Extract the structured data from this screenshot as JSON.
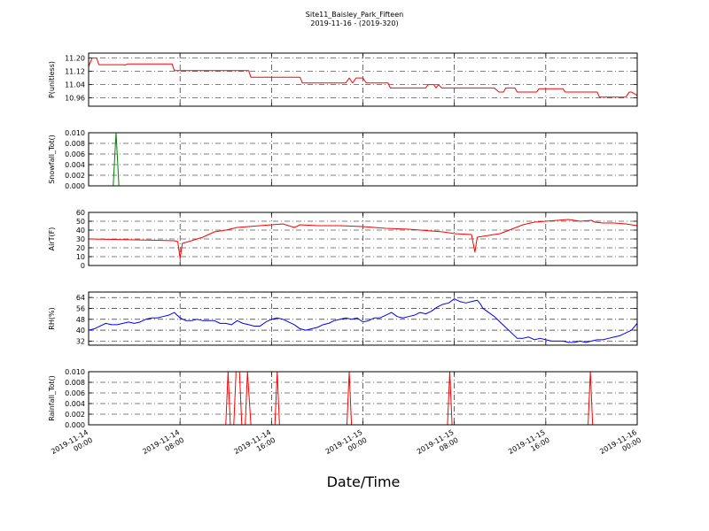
{
  "chart_data": [
    {
      "type": "line",
      "title": "Site11_Baisley_Park_Fifteen",
      "subtitle": "2019-11-16 - (2019-320)",
      "xlabel": "Date/Time",
      "x_ticks": [
        {
          "x": 0,
          "line1": "2019-11-14",
          "line2": "00:00"
        },
        {
          "x": 8,
          "line1": "2019-11-14",
          "line2": "08:00"
        },
        {
          "x": 16,
          "line1": "2019-11-14",
          "line2": "16:00"
        },
        {
          "x": 24,
          "line1": "2019-11-15",
          "line2": "00:00"
        },
        {
          "x": 32,
          "line1": "2019-11-15",
          "line2": "08:00"
        },
        {
          "x": 40,
          "line1": "2019-11-15",
          "line2": "16:00"
        },
        {
          "x": 48,
          "line1": "2019-11-16",
          "line2": "00:00"
        }
      ],
      "xlim": [
        0,
        48
      ],
      "grid": true,
      "panels": [
        {
          "ylabel": "P(unitless)",
          "color": "#ff0000",
          "ylim": [
            10.91,
            11.23
          ],
          "yticks": [
            10.96,
            11.04,
            11.12,
            11.2
          ],
          "ytick_labels": [
            "10.96",
            "11.04",
            "11.12",
            "11.20"
          ],
          "points": [
            [
              0,
              11.15
            ],
            [
              0.3,
              11.2
            ],
            [
              0.7,
              11.2
            ],
            [
              0.9,
              11.16
            ],
            [
              3,
              11.16
            ],
            [
              3.2,
              11.158
            ],
            [
              3.4,
              11.165
            ],
            [
              7.3,
              11.165
            ],
            [
              7.5,
              11.125
            ],
            [
              14,
              11.125
            ],
            [
              14.2,
              11.085
            ],
            [
              18.5,
              11.085
            ],
            [
              18.7,
              11.05
            ],
            [
              22.5,
              11.05
            ],
            [
              22.8,
              11.08
            ],
            [
              23.1,
              11.05
            ],
            [
              23.4,
              11.08
            ],
            [
              24,
              11.08
            ],
            [
              24.3,
              11.05
            ],
            [
              26.2,
              11.05
            ],
            [
              26.4,
              11.02
            ],
            [
              29.5,
              11.02
            ],
            [
              29.7,
              11.04
            ],
            [
              30.2,
              11.04
            ],
            [
              30.4,
              11.02
            ],
            [
              30.6,
              11.04
            ],
            [
              30.9,
              11.02
            ],
            [
              35.5,
              11.02
            ],
            [
              35.9,
              10.995
            ],
            [
              36.3,
              10.995
            ],
            [
              36.5,
              11.02
            ],
            [
              37.3,
              11.02
            ],
            [
              37.5,
              10.995
            ],
            [
              39.2,
              10.995
            ],
            [
              39.4,
              11.015
            ],
            [
              41.5,
              11.015
            ],
            [
              41.7,
              10.995
            ],
            [
              44.5,
              10.995
            ],
            [
              44.7,
              10.965
            ],
            [
              47,
              10.965
            ],
            [
              47.3,
              10.995
            ],
            [
              47.5,
              10.995
            ],
            [
              48,
              10.975
            ]
          ]
        },
        {
          "ylabel": "Snowfall_Tot()",
          "color": "#008000",
          "ylim": [
            0,
            0.01
          ],
          "yticks": [
            0,
            0.002,
            0.004,
            0.006,
            0.008,
            0.01
          ],
          "ytick_labels": [
            "0.000",
            "0.002",
            "0.004",
            "0.006",
            "0.008",
            "0.010"
          ],
          "points": [
            [
              0,
              0
            ],
            [
              2.15,
              0
            ],
            [
              2.4,
              0.01
            ],
            [
              2.65,
              0
            ],
            [
              48,
              0
            ]
          ]
        },
        {
          "ylabel": "AirT(F)",
          "color": "#ff0000",
          "ylim": [
            0,
            60
          ],
          "yticks": [
            0,
            10,
            20,
            30,
            40,
            50,
            60
          ],
          "ytick_labels": [
            "0",
            "10",
            "20",
            "30",
            "40",
            "50",
            "60"
          ],
          "points": [
            [
              0,
              30
            ],
            [
              2,
              29.5
            ],
            [
              4,
              29
            ],
            [
              6,
              28.5
            ],
            [
              7.5,
              28
            ],
            [
              7.8,
              27
            ],
            [
              8,
              8
            ],
            [
              8.2,
              25
            ],
            [
              9,
              28
            ],
            [
              10,
              32
            ],
            [
              11,
              38
            ],
            [
              12,
              40
            ],
            [
              13,
              43
            ],
            [
              14,
              44
            ],
            [
              16,
              46
            ],
            [
              17,
              47
            ],
            [
              18,
              43
            ],
            [
              18.5,
              46
            ],
            [
              20,
              45
            ],
            [
              22,
              45
            ],
            [
              24,
              44
            ],
            [
              26,
              42
            ],
            [
              28,
              41
            ],
            [
              30,
              39
            ],
            [
              31,
              38
            ],
            [
              32,
              36
            ],
            [
              33.5,
              35
            ],
            [
              33.8,
              15
            ],
            [
              34,
              32
            ],
            [
              35,
              34
            ],
            [
              36,
              36
            ],
            [
              37,
              41
            ],
            [
              38,
              46
            ],
            [
              39,
              49
            ],
            [
              40,
              50
            ],
            [
              41,
              51
            ],
            [
              42,
              52
            ],
            [
              43,
              50
            ],
            [
              44,
              51
            ],
            [
              44.3,
              49
            ],
            [
              45,
              48
            ],
            [
              46,
              48
            ],
            [
              47,
              47
            ],
            [
              48,
              45
            ]
          ]
        },
        {
          "ylabel": "RH(%)",
          "color": "#0000ff",
          "ylim": [
            29,
            68
          ],
          "yticks": [
            32,
            40,
            48,
            56,
            64
          ],
          "ytick_labels": [
            "32",
            "40",
            "48",
            "56",
            "64"
          ],
          "points": [
            [
              0,
              40
            ],
            [
              0.5,
              41
            ],
            [
              1,
              43
            ],
            [
              1.5,
              45
            ],
            [
              2,
              44
            ],
            [
              2.5,
              44
            ],
            [
              3,
              45
            ],
            [
              3.5,
              46
            ],
            [
              4,
              45
            ],
            [
              4.5,
              46
            ],
            [
              5,
              48
            ],
            [
              5.5,
              49
            ],
            [
              6,
              49
            ],
            [
              6.5,
              50
            ],
            [
              7,
              51
            ],
            [
              7.5,
              53
            ],
            [
              8,
              49
            ],
            [
              8.5,
              47
            ],
            [
              9,
              47
            ],
            [
              9.5,
              48
            ],
            [
              10,
              47
            ],
            [
              10.5,
              47
            ],
            [
              11,
              47
            ],
            [
              11.5,
              45
            ],
            [
              12,
              45
            ],
            [
              12.5,
              44
            ],
            [
              13,
              47
            ],
            [
              13.5,
              45
            ],
            [
              14,
              44
            ],
            [
              14.5,
              43
            ],
            [
              15,
              43
            ],
            [
              15.5,
              46
            ],
            [
              16,
              48
            ],
            [
              16.5,
              49
            ],
            [
              17,
              48
            ],
            [
              17.5,
              46
            ],
            [
              18,
              44
            ],
            [
              18.5,
              41
            ],
            [
              19,
              40
            ],
            [
              19.5,
              41
            ],
            [
              20,
              42
            ],
            [
              20.5,
              44
            ],
            [
              21,
              45
            ],
            [
              21.5,
              47
            ],
            [
              22,
              48
            ],
            [
              22.5,
              49
            ],
            [
              23,
              48
            ],
            [
              23.5,
              49
            ],
            [
              24,
              46
            ],
            [
              24.5,
              47
            ],
            [
              25,
              49
            ],
            [
              25.5,
              49
            ],
            [
              26,
              51
            ],
            [
              26.5,
              53
            ],
            [
              27,
              50
            ],
            [
              27.5,
              49
            ],
            [
              28,
              50
            ],
            [
              28.5,
              51
            ],
            [
              29,
              53
            ],
            [
              29.5,
              52
            ],
            [
              30,
              54
            ],
            [
              30.5,
              57
            ],
            [
              31,
              59
            ],
            [
              31.5,
              60
            ],
            [
              32,
              63
            ],
            [
              32.5,
              61
            ],
            [
              33,
              60
            ],
            [
              33.5,
              61
            ],
            [
              34,
              62
            ],
            [
              34.3,
              59
            ],
            [
              34.5,
              56
            ],
            [
              35,
              53
            ],
            [
              35.5,
              50
            ],
            [
              36,
              46
            ],
            [
              36.5,
              42
            ],
            [
              37,
              38
            ],
            [
              37.5,
              34
            ],
            [
              38,
              34
            ],
            [
              38.5,
              35
            ],
            [
              39,
              33
            ],
            [
              39.5,
              34
            ],
            [
              40,
              33
            ],
            [
              40.5,
              32
            ],
            [
              41,
              32
            ],
            [
              41.5,
              32
            ],
            [
              42,
              31
            ],
            [
              42.5,
              31
            ],
            [
              43,
              32
            ],
            [
              43.5,
              31
            ],
            [
              44,
              32
            ],
            [
              44.5,
              33
            ],
            [
              45,
              33
            ],
            [
              45.5,
              34
            ],
            [
              46,
              35
            ],
            [
              46.5,
              36
            ],
            [
              47,
              38
            ],
            [
              47.5,
              40
            ],
            [
              48,
              45
            ]
          ]
        },
        {
          "ylabel": "Rainfall_Tot()",
          "color": "#ff0000",
          "ylim": [
            0,
            0.01
          ],
          "yticks": [
            0,
            0.002,
            0.004,
            0.006,
            0.008,
            0.01
          ],
          "ytick_labels": [
            "0.000",
            "0.002",
            "0.004",
            "0.006",
            "0.008",
            "0.010"
          ],
          "points": [
            [
              0,
              0
            ],
            [
              12,
              0
            ],
            [
              12.2,
              0.01
            ],
            [
              12.4,
              0
            ],
            [
              12.7,
              0
            ],
            [
              12.9,
              0.01
            ],
            [
              13.2,
              0.01
            ],
            [
              13.4,
              0
            ],
            [
              13.7,
              0
            ],
            [
              13.9,
              0.01
            ],
            [
              14.2,
              0
            ],
            [
              16.3,
              0
            ],
            [
              16.5,
              0.01
            ],
            [
              16.7,
              0
            ],
            [
              22.6,
              0
            ],
            [
              22.8,
              0.01
            ],
            [
              23,
              0
            ],
            [
              31.4,
              0
            ],
            [
              31.6,
              0.01
            ],
            [
              31.8,
              0
            ],
            [
              43.7,
              0
            ],
            [
              43.9,
              0.01
            ],
            [
              44.1,
              0
            ],
            [
              48,
              0
            ]
          ]
        }
      ]
    }
  ]
}
